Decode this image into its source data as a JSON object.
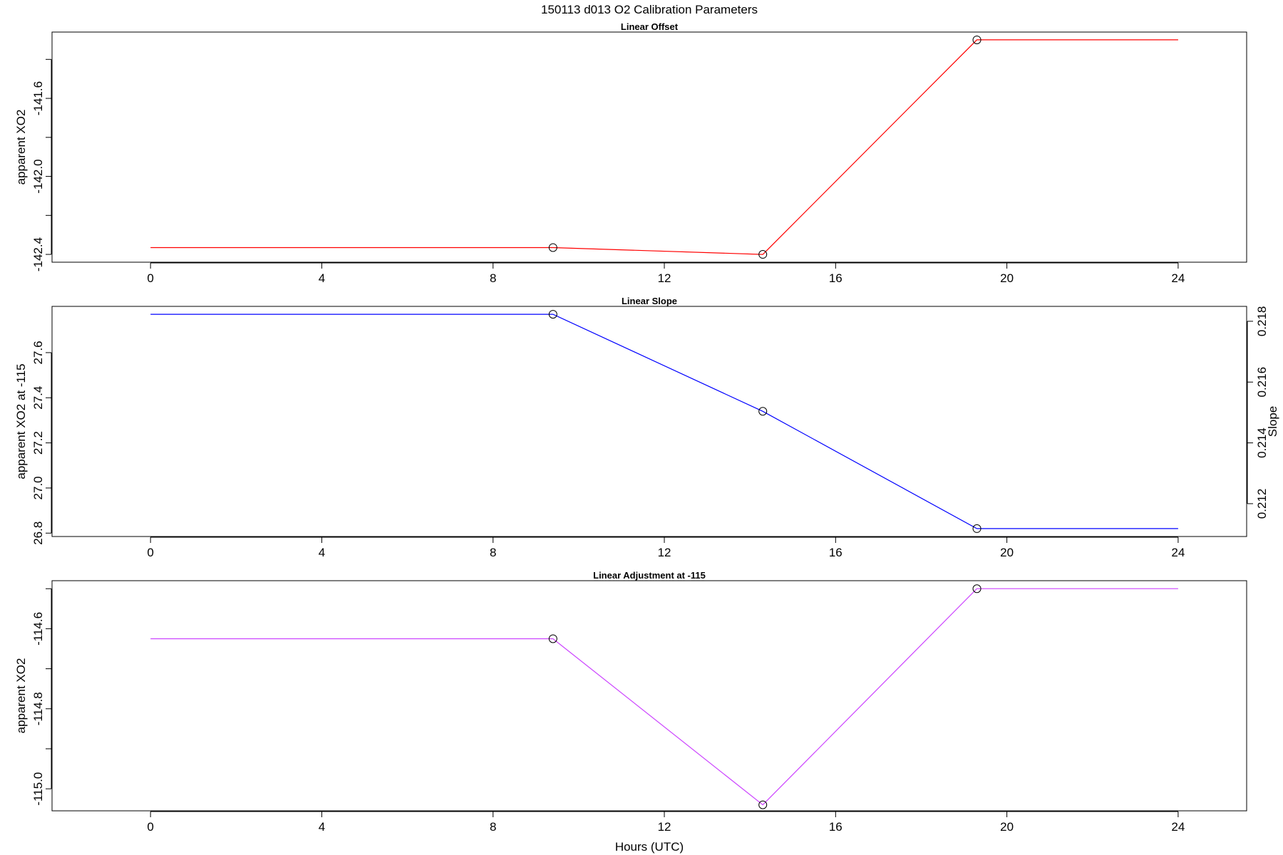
{
  "figure": {
    "title": "150113   d013   O2 Calibration Parameters",
    "xlabel": "Hours (UTC)"
  },
  "chart_data": [
    {
      "type": "line",
      "title": "Linear Offset",
      "xlabel": "Hours (UTC)",
      "ylabel": "apparent XO2",
      "xlim": [
        -2.3,
        25.6
      ],
      "ylim": [
        -142.44,
        -141.26
      ],
      "xticks": [
        "0",
        "4",
        "8",
        "12",
        "16",
        "20",
        "24"
      ],
      "xtick_values": [
        0,
        4,
        8,
        12,
        16,
        20,
        24
      ],
      "yticks": [
        "-142.4",
        "-142.0",
        "-141.6"
      ],
      "ytick_values": [
        -142.4,
        -142.0,
        -141.6
      ],
      "ytick_minor_values": [
        -142.4,
        -142.2,
        -142.0,
        -141.8,
        -141.6,
        -141.4
      ],
      "grid": false,
      "series": [
        {
          "color": "#ff0000",
          "x": [
            0,
            9.4,
            14.3,
            19.3,
            24
          ],
          "y": [
            -142.365,
            -142.365,
            -142.4,
            -141.3,
            -141.3
          ],
          "markers_x": [
            9.4,
            14.3,
            19.3
          ],
          "markers_y": [
            -142.365,
            -142.4,
            -141.3
          ]
        }
      ]
    },
    {
      "type": "line",
      "title": "Linear Slope",
      "xlabel": "Hours (UTC)",
      "ylabel": "apparent XO2 at -115",
      "y2label": "Slope",
      "xlim": [
        -2.3,
        25.6
      ],
      "ylim": [
        26.785,
        27.805
      ],
      "xticks": [
        "0",
        "4",
        "8",
        "12",
        "16",
        "20",
        "24"
      ],
      "xtick_values": [
        0,
        4,
        8,
        12,
        16,
        20,
        24
      ],
      "yticks": [
        "26.8",
        "27.0",
        "27.2",
        "27.4",
        "27.6"
      ],
      "ytick_values": [
        26.8,
        27.0,
        27.2,
        27.4,
        27.6
      ],
      "y2lim": [
        0.21092,
        0.21849
      ],
      "y2ticks": [
        "0.212",
        "0.214",
        "0.216",
        "0.218"
      ],
      "y2tick_values": [
        0.212,
        0.214,
        0.216,
        0.218
      ],
      "grid": false,
      "series": [
        {
          "color": "#0000ff",
          "x": [
            0,
            9.4,
            14.3,
            19.3,
            24
          ],
          "y": [
            27.77,
            27.77,
            27.34,
            26.82,
            26.82
          ],
          "markers_x": [
            9.4,
            14.3,
            19.3
          ],
          "markers_y": [
            27.77,
            27.34,
            26.82
          ]
        }
      ]
    },
    {
      "type": "line",
      "title": "Linear Adjustment at -115",
      "xlabel": "Hours (UTC)",
      "ylabel": "apparent XO2",
      "xlim": [
        -2.3,
        25.6
      ],
      "ylim": [
        -115.055,
        -114.48
      ],
      "xticks": [
        "0",
        "4",
        "8",
        "12",
        "16",
        "20",
        "24"
      ],
      "xtick_values": [
        0,
        4,
        8,
        12,
        16,
        20,
        24
      ],
      "yticks": [
        "-115.0",
        "-114.8",
        "-114.6"
      ],
      "ytick_values": [
        -115.0,
        -114.8,
        -114.6
      ],
      "ytick_minor_values": [
        -115.0,
        -114.9,
        -114.8,
        -114.7,
        -114.6,
        -114.5
      ],
      "grid": false,
      "series": [
        {
          "color": "#cc44ff",
          "x": [
            0,
            9.4,
            14.3,
            19.3,
            24
          ],
          "y": [
            -114.625,
            -114.625,
            -115.04,
            -114.5,
            -114.5
          ],
          "markers_x": [
            9.4,
            14.3,
            19.3
          ],
          "markers_y": [
            -114.625,
            -115.04,
            -114.5
          ]
        }
      ]
    }
  ]
}
